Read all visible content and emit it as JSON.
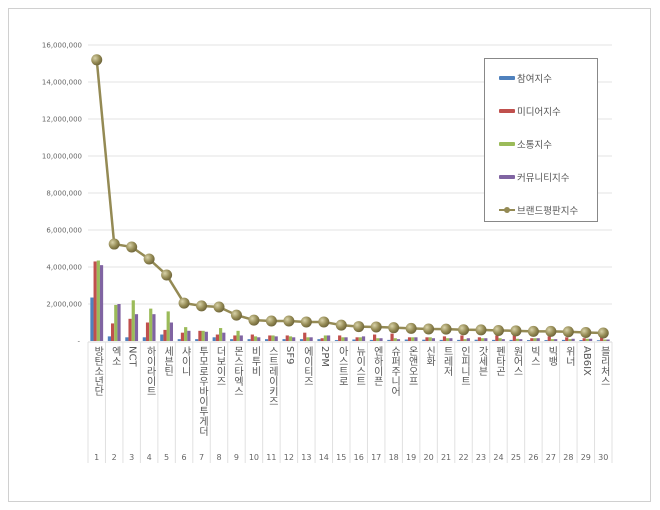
{
  "chart_data": {
    "type": "bar+line",
    "categories": [
      "방탄소년단",
      "엑소",
      "NCT",
      "하이라이트",
      "세븐틴",
      "샤이니",
      "투모로우바이투게더",
      "더보이즈",
      "몬스타엑스",
      "비투비",
      "스트레이키즈",
      "SF9",
      "에이티즈",
      "2PM",
      "아스트로",
      "뉴이스트",
      "엔하이픈",
      "슈퍼주니어",
      "온앤오프",
      "신화",
      "트레저",
      "인피니트",
      "갓세븐",
      "펜타곤",
      "원어스",
      "빅스",
      "빅뱅",
      "위너",
      "AB6IX",
      "블리처스"
    ],
    "ranks": [
      "1",
      "2",
      "3",
      "4",
      "5",
      "6",
      "7",
      "8",
      "9",
      "10",
      "11",
      "12",
      "13",
      "14",
      "15",
      "16",
      "17",
      "18",
      "19",
      "20",
      "21",
      "22",
      "23",
      "24",
      "25",
      "26",
      "27",
      "28",
      "29",
      "30"
    ],
    "yticks": [
      "-",
      "2,000,000",
      "4,000,000",
      "6,000,000",
      "8,000,000",
      "10,000,000",
      "12,000,000",
      "14,000,000",
      "16,000,000"
    ],
    "ylim": [
      0,
      16000000
    ],
    "grid": true,
    "legend_placement": "top-right",
    "series": [
      {
        "name": "참여지수",
        "type": "bar",
        "color": "#4f81bd",
        "values": [
          2350000,
          250000,
          200000,
          200000,
          350000,
          100000,
          100000,
          200000,
          100000,
          100000,
          100000,
          100000,
          100000,
          100000,
          50000,
          80000,
          60000,
          60000,
          80000,
          70000,
          60000,
          60000,
          70000,
          60000,
          60000,
          50000,
          50000,
          60000,
          50000,
          40000
        ]
      },
      {
        "name": "미디어지수",
        "type": "bar",
        "color": "#c0504d",
        "values": [
          4300000,
          950000,
          1200000,
          1000000,
          600000,
          450000,
          550000,
          350000,
          300000,
          350000,
          300000,
          300000,
          450000,
          150000,
          300000,
          200000,
          350000,
          400000,
          200000,
          200000,
          250000,
          300000,
          200000,
          300000,
          300000,
          150000,
          250000,
          200000,
          150000,
          200000
        ]
      },
      {
        "name": "소통지수",
        "type": "bar",
        "color": "#9bbb59",
        "values": [
          4350000,
          1950000,
          2200000,
          1750000,
          1600000,
          750000,
          550000,
          700000,
          550000,
          250000,
          300000,
          250000,
          200000,
          300000,
          200000,
          200000,
          150000,
          150000,
          200000,
          200000,
          150000,
          100000,
          150000,
          150000,
          120000,
          150000,
          100000,
          100000,
          120000,
          80000
        ]
      },
      {
        "name": "커뮤니티지수",
        "type": "bar",
        "color": "#8064a2",
        "values": [
          4100000,
          2000000,
          1450000,
          1450000,
          1000000,
          550000,
          500000,
          450000,
          300000,
          200000,
          250000,
          200000,
          200000,
          300000,
          200000,
          250000,
          150000,
          100000,
          200000,
          150000,
          150000,
          150000,
          150000,
          100000,
          100000,
          150000,
          100000,
          120000,
          120000,
          80000
        ]
      },
      {
        "name": "브랜드평판지수",
        "type": "line",
        "color": "#948a54",
        "values": [
          15200000,
          5240000,
          5080000,
          4430000,
          3570000,
          2050000,
          1900000,
          1840000,
          1400000,
          1130000,
          1080000,
          1080000,
          1030000,
          1030000,
          860000,
          780000,
          760000,
          720000,
          680000,
          650000,
          640000,
          610000,
          600000,
          570000,
          550000,
          520000,
          520000,
          500000,
          460000,
          430000
        ]
      }
    ]
  }
}
